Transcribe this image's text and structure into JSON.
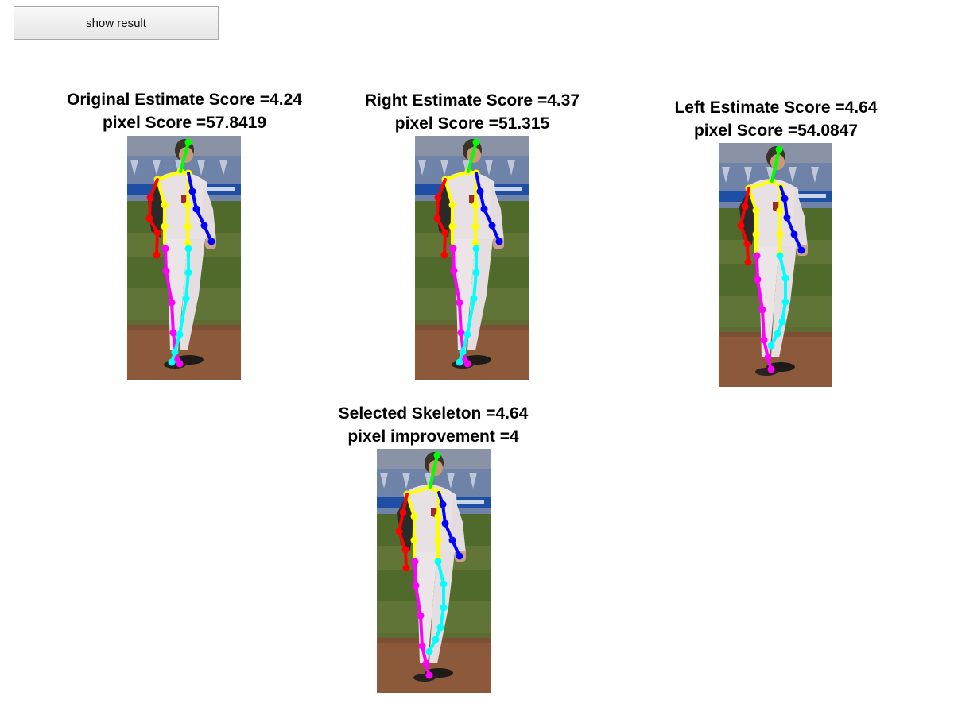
{
  "toolbar": {
    "show_result_label": "show result"
  },
  "panels": [
    {
      "id": "original",
      "line1": "Original Estimate Score =4.24",
      "line2": "pixel Score =57.8419"
    },
    {
      "id": "right",
      "line1": "Right Estimate Score =4.37",
      "line2": "pixel Score =51.315"
    },
    {
      "id": "left",
      "line1": "Left Estimate Score =4.64",
      "line2": "pixel Score =54.0847"
    },
    {
      "id": "selected",
      "line1": "Selected Skeleton =4.64",
      "line2": "pixel improvement =4"
    }
  ],
  "colors": {
    "head": "#00ff00",
    "torso": "#ffff00",
    "right_arm": "#ff0000",
    "left_arm": "#0000ff",
    "right_leg": "#ff00ff",
    "left_leg": "#00ffff"
  }
}
